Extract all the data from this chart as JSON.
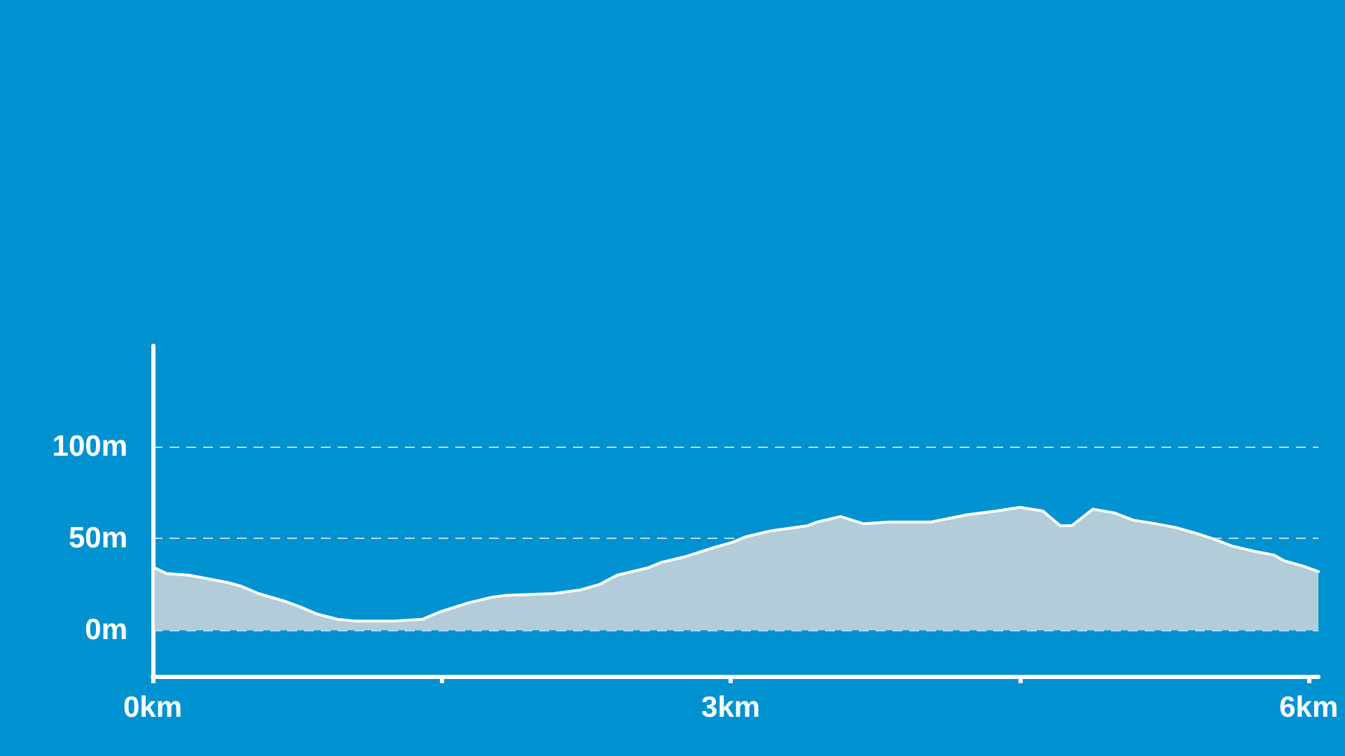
{
  "chart_data": {
    "type": "area",
    "x": [
      0.01,
      0.07,
      0.19,
      0.39,
      0.46,
      0.55,
      0.68,
      0.76,
      0.85,
      0.96,
      1.05,
      1.25,
      1.4,
      1.49,
      1.64,
      1.76,
      1.83,
      2.08,
      2.22,
      2.32,
      2.41,
      2.57,
      2.64,
      2.76,
      2.91,
      3.01,
      3.08,
      3.2,
      3.4,
      3.45,
      3.57,
      3.69,
      3.82,
      4.04,
      4.23,
      4.38,
      4.5,
      4.62,
      4.71,
      4.77,
      4.88,
      4.99,
      5.09,
      5.21,
      5.31,
      5.41,
      5.5,
      5.6,
      5.72,
      5.82,
      5.87,
      5.97,
      6.05
    ],
    "series": [
      {
        "color": "#b2cdd9",
        "values": [
          34,
          31,
          30,
          26,
          24,
          20,
          16,
          13,
          9,
          6,
          5,
          5,
          6,
          10,
          15,
          18,
          19,
          20,
          22,
          25,
          30,
          34,
          37,
          40,
          45,
          48,
          51,
          54,
          57,
          59,
          62,
          58,
          59,
          59,
          63,
          65,
          67,
          65,
          57,
          57,
          66,
          64,
          60,
          58,
          56,
          53,
          50,
          46,
          43,
          41,
          38,
          35,
          32
        ]
      }
    ],
    "xlim": [
      0,
      6.05
    ],
    "xticks": [
      {
        "value": 0,
        "label": "0km"
      },
      {
        "value": 1.5,
        "label": null
      },
      {
        "value": 3,
        "label": "3km"
      },
      {
        "value": 4.5,
        "label": null
      },
      {
        "value": 6,
        "label": "6km"
      }
    ],
    "ylim": [
      -25,
      155
    ],
    "yticks": [
      {
        "value": 0,
        "label": "0m"
      },
      {
        "value": 50,
        "label": "50m"
      },
      {
        "value": 100,
        "label": "100m"
      }
    ],
    "grid": "y",
    "marker": "none",
    "line_style": "solid"
  }
}
